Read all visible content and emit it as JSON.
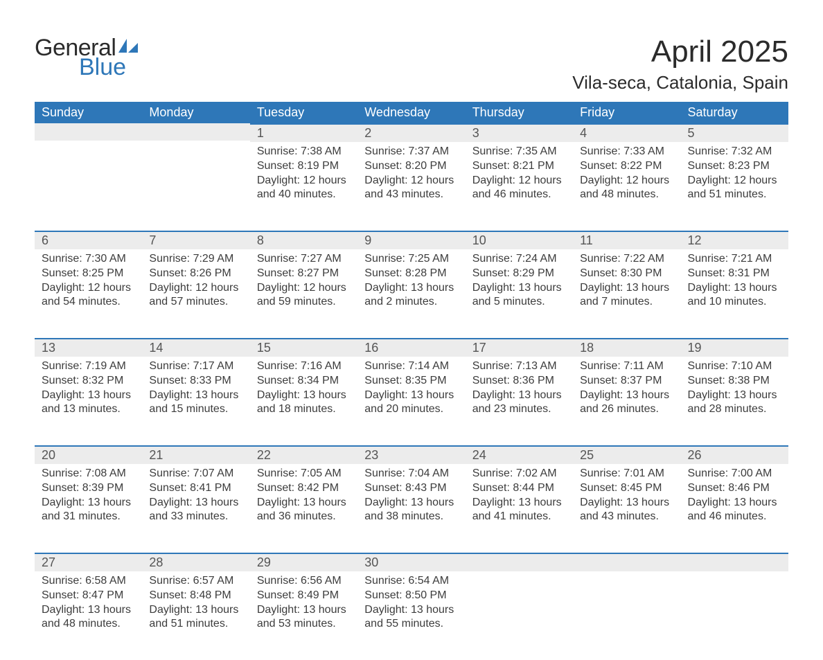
{
  "logo": {
    "text1": "General",
    "text2": "Blue",
    "icon_color": "#2e77b8"
  },
  "title": "April 2025",
  "location": "Vila-seca, Catalonia, Spain",
  "colors": {
    "header_bg": "#2e77b8",
    "header_text": "#ffffff",
    "daynum_bg": "#ececec",
    "daynum_border": "#2e77b8",
    "body_text": "#3c3c3c",
    "page_bg": "#ffffff"
  },
  "typography": {
    "title_fontsize": 44,
    "location_fontsize": 26,
    "header_fontsize": 18,
    "daynum_fontsize": 18,
    "cell_fontsize": 16
  },
  "days_of_week": [
    "Sunday",
    "Monday",
    "Tuesday",
    "Wednesday",
    "Thursday",
    "Friday",
    "Saturday"
  ],
  "weeks": [
    [
      null,
      null,
      {
        "n": "1",
        "sunrise": "7:38 AM",
        "sunset": "8:19 PM",
        "daylight": "12 hours and 40 minutes."
      },
      {
        "n": "2",
        "sunrise": "7:37 AM",
        "sunset": "8:20 PM",
        "daylight": "12 hours and 43 minutes."
      },
      {
        "n": "3",
        "sunrise": "7:35 AM",
        "sunset": "8:21 PM",
        "daylight": "12 hours and 46 minutes."
      },
      {
        "n": "4",
        "sunrise": "7:33 AM",
        "sunset": "8:22 PM",
        "daylight": "12 hours and 48 minutes."
      },
      {
        "n": "5",
        "sunrise": "7:32 AM",
        "sunset": "8:23 PM",
        "daylight": "12 hours and 51 minutes."
      }
    ],
    [
      {
        "n": "6",
        "sunrise": "7:30 AM",
        "sunset": "8:25 PM",
        "daylight": "12 hours and 54 minutes."
      },
      {
        "n": "7",
        "sunrise": "7:29 AM",
        "sunset": "8:26 PM",
        "daylight": "12 hours and 57 minutes."
      },
      {
        "n": "8",
        "sunrise": "7:27 AM",
        "sunset": "8:27 PM",
        "daylight": "12 hours and 59 minutes."
      },
      {
        "n": "9",
        "sunrise": "7:25 AM",
        "sunset": "8:28 PM",
        "daylight": "13 hours and 2 minutes."
      },
      {
        "n": "10",
        "sunrise": "7:24 AM",
        "sunset": "8:29 PM",
        "daylight": "13 hours and 5 minutes."
      },
      {
        "n": "11",
        "sunrise": "7:22 AM",
        "sunset": "8:30 PM",
        "daylight": "13 hours and 7 minutes."
      },
      {
        "n": "12",
        "sunrise": "7:21 AM",
        "sunset": "8:31 PM",
        "daylight": "13 hours and 10 minutes."
      }
    ],
    [
      {
        "n": "13",
        "sunrise": "7:19 AM",
        "sunset": "8:32 PM",
        "daylight": "13 hours and 13 minutes."
      },
      {
        "n": "14",
        "sunrise": "7:17 AM",
        "sunset": "8:33 PM",
        "daylight": "13 hours and 15 minutes."
      },
      {
        "n": "15",
        "sunrise": "7:16 AM",
        "sunset": "8:34 PM",
        "daylight": "13 hours and 18 minutes."
      },
      {
        "n": "16",
        "sunrise": "7:14 AM",
        "sunset": "8:35 PM",
        "daylight": "13 hours and 20 minutes."
      },
      {
        "n": "17",
        "sunrise": "7:13 AM",
        "sunset": "8:36 PM",
        "daylight": "13 hours and 23 minutes."
      },
      {
        "n": "18",
        "sunrise": "7:11 AM",
        "sunset": "8:37 PM",
        "daylight": "13 hours and 26 minutes."
      },
      {
        "n": "19",
        "sunrise": "7:10 AM",
        "sunset": "8:38 PM",
        "daylight": "13 hours and 28 minutes."
      }
    ],
    [
      {
        "n": "20",
        "sunrise": "7:08 AM",
        "sunset": "8:39 PM",
        "daylight": "13 hours and 31 minutes."
      },
      {
        "n": "21",
        "sunrise": "7:07 AM",
        "sunset": "8:41 PM",
        "daylight": "13 hours and 33 minutes."
      },
      {
        "n": "22",
        "sunrise": "7:05 AM",
        "sunset": "8:42 PM",
        "daylight": "13 hours and 36 minutes."
      },
      {
        "n": "23",
        "sunrise": "7:04 AM",
        "sunset": "8:43 PM",
        "daylight": "13 hours and 38 minutes."
      },
      {
        "n": "24",
        "sunrise": "7:02 AM",
        "sunset": "8:44 PM",
        "daylight": "13 hours and 41 minutes."
      },
      {
        "n": "25",
        "sunrise": "7:01 AM",
        "sunset": "8:45 PM",
        "daylight": "13 hours and 43 minutes."
      },
      {
        "n": "26",
        "sunrise": "7:00 AM",
        "sunset": "8:46 PM",
        "daylight": "13 hours and 46 minutes."
      }
    ],
    [
      {
        "n": "27",
        "sunrise": "6:58 AM",
        "sunset": "8:47 PM",
        "daylight": "13 hours and 48 minutes."
      },
      {
        "n": "28",
        "sunrise": "6:57 AM",
        "sunset": "8:48 PM",
        "daylight": "13 hours and 51 minutes."
      },
      {
        "n": "29",
        "sunrise": "6:56 AM",
        "sunset": "8:49 PM",
        "daylight": "13 hours and 53 minutes."
      },
      {
        "n": "30",
        "sunrise": "6:54 AM",
        "sunset": "8:50 PM",
        "daylight": "13 hours and 55 minutes."
      },
      null,
      null,
      null
    ]
  ],
  "labels": {
    "sunrise": "Sunrise:",
    "sunset": "Sunset:",
    "daylight": "Daylight:"
  }
}
